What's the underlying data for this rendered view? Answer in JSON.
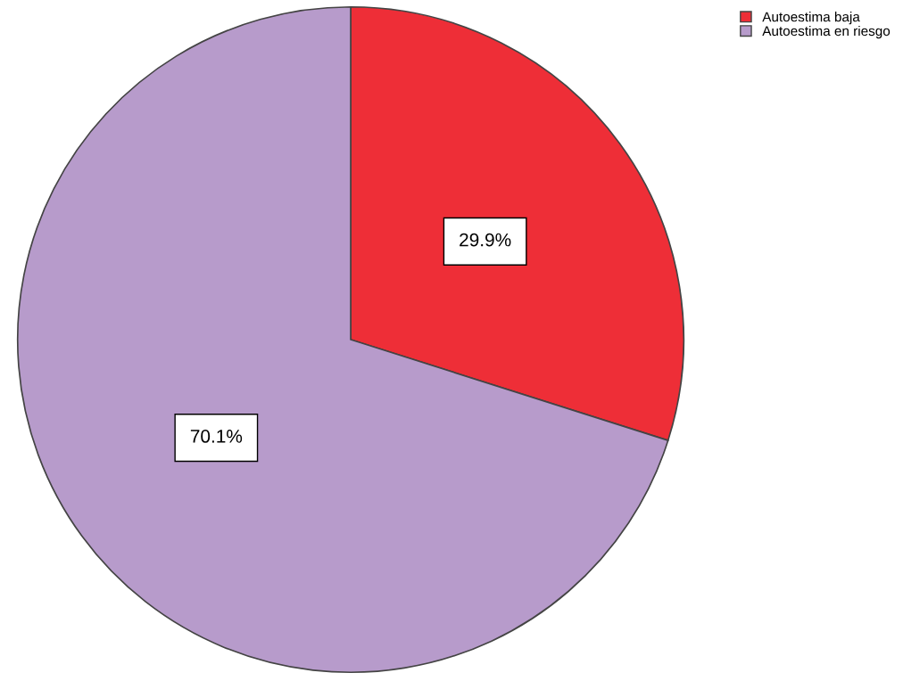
{
  "chart_data": {
    "type": "pie",
    "categories": [
      "Autoestima baja",
      "Autoestima en riesgo"
    ],
    "values": [
      29.9,
      70.1
    ],
    "colors": [
      "#ee2e37",
      "#b79bcb"
    ],
    "value_labels": [
      "29.9%",
      "70.1%"
    ],
    "legend": "top right"
  }
}
